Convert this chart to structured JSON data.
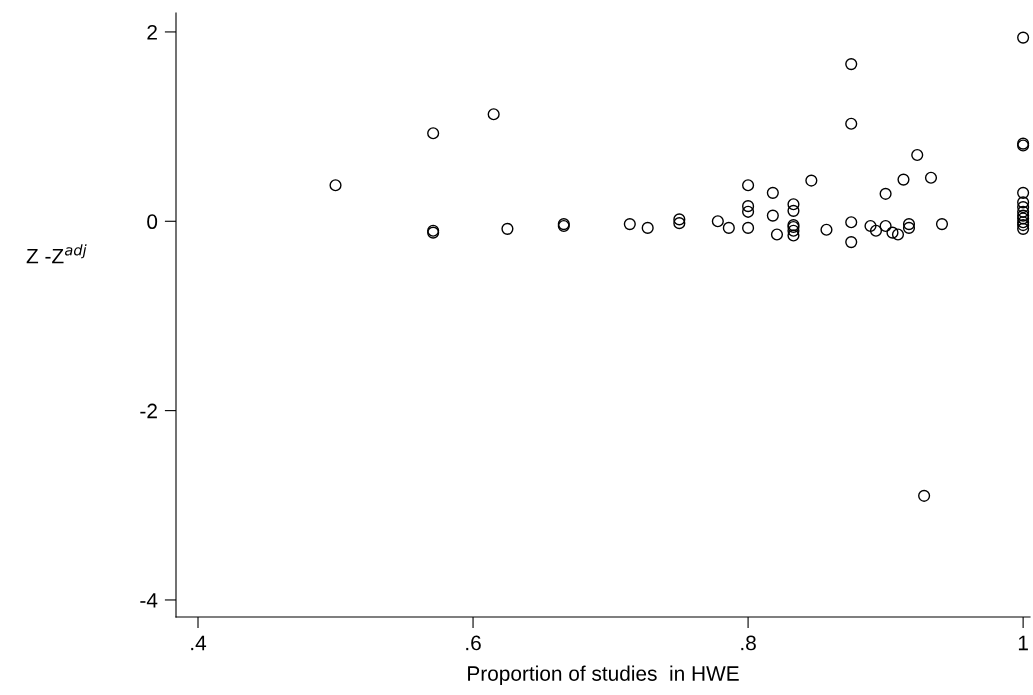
{
  "chart_data": {
    "type": "scatter",
    "xlabel": "Proportion of studies  in HWE",
    "ylabel": "Z -Z$^{adj}$",
    "x": [
      0.5,
      0.571,
      0.571,
      0.571,
      0.615,
      0.625,
      0.666,
      0.666,
      0.714,
      0.727,
      0.75,
      0.75,
      0.778,
      0.786,
      0.8,
      0.8,
      0.8,
      0.8,
      0.818,
      0.818,
      0.821,
      0.833,
      0.833,
      0.833,
      0.833,
      0.833,
      0.833,
      0.846,
      0.857,
      0.875,
      0.875,
      0.875,
      0.875,
      0.889,
      0.893,
      0.9,
      0.9,
      0.905,
      0.909,
      0.913,
      0.917,
      0.917,
      0.923,
      0.928,
      0.933,
      0.941,
      1,
      1,
      1,
      1,
      1,
      1,
      1,
      1,
      1,
      1,
      1,
      1
    ],
    "values": [
      0.38,
      0.93,
      -0.1,
      -0.12,
      1.13,
      -0.08,
      -0.03,
      -0.05,
      -0.03,
      -0.07,
      0.02,
      -0.02,
      0.0,
      -0.07,
      0.38,
      0.16,
      0.1,
      -0.07,
      0.3,
      0.06,
      -0.14,
      0.18,
      0.11,
      -0.04,
      -0.06,
      -0.1,
      -0.15,
      0.43,
      -0.09,
      1.66,
      1.03,
      -0.01,
      -0.22,
      -0.05,
      -0.1,
      0.29,
      -0.05,
      -0.12,
      -0.14,
      0.44,
      -0.03,
      -0.07,
      0.7,
      -2.9,
      0.46,
      -0.03,
      1.94,
      0.82,
      0.8,
      0.3,
      0.2,
      0.15,
      0.1,
      0.06,
      0.03,
      -0.01,
      -0.04,
      -0.08
    ],
    "color": "#000000",
    "marker": "circle",
    "xlim": [
      0.384,
      1.005
    ],
    "xticks": [
      {
        "value": 0.4,
        "label": ".4"
      },
      {
        "value": 0.6,
        "label": ".6"
      },
      {
        "value": 0.8,
        "label": ".8"
      },
      1
    ],
    "ylim": [
      -4.18,
      2.2
    ],
    "yticks": [
      -4,
      -2,
      0,
      2
    ],
    "grid": false,
    "legend": false
  }
}
